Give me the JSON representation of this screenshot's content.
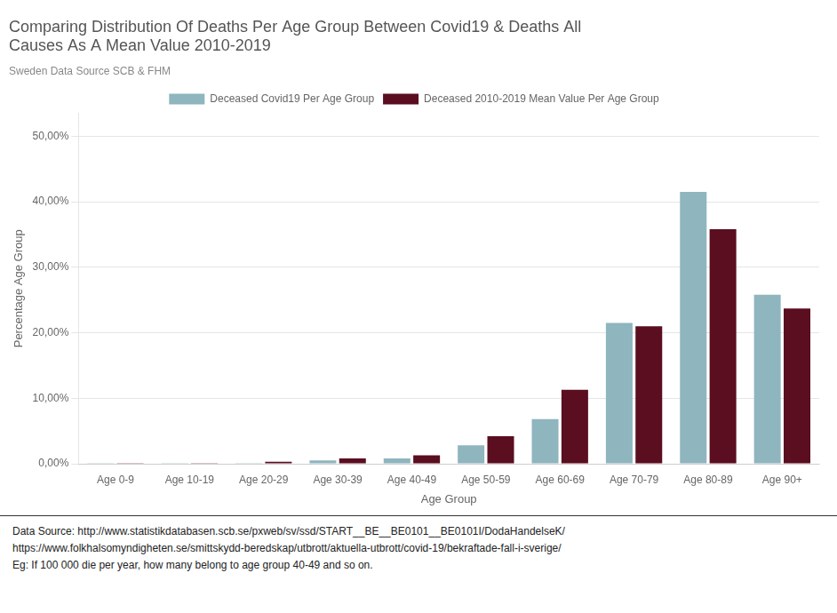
{
  "chart_data": {
    "type": "bar",
    "title": "Comparing Distribution Of Deaths Per Age Group Between Covid19 & Deaths All\nCauses As A Mean Value 2010-2019",
    "subtitle": "Sweden Data Source SCB & FHM",
    "xlabel": "Age Group",
    "ylabel": "Percentage Age Group",
    "categories": [
      "Age 0-9",
      "Age 10-19",
      "Age 20-29",
      "Age 30-39",
      "Age 40-49",
      "Age 50-59",
      "Age 60-69",
      "Age 70-79",
      "Age 80-89",
      "Age 90+"
    ],
    "series": [
      {
        "name": "Deceased Covid19 Per Age Group",
        "color": "#8fb5bf",
        "values": [
          0.0005,
          0.0003,
          0.001,
          0.005,
          0.008,
          0.028,
          0.068,
          0.215,
          0.415,
          0.258
        ]
      },
      {
        "name": "Deceased 2010-2019 Mean Value Per Age Group",
        "color": "#5a0e20",
        "values": [
          0.0003,
          0.0003,
          0.003,
          0.008,
          0.013,
          0.042,
          0.113,
          0.21,
          0.358,
          0.237
        ]
      }
    ],
    "ylim": [
      0,
      0.535
    ],
    "yticks": [
      {
        "value": 0.0,
        "label": "0,00%"
      },
      {
        "value": 0.1,
        "label": "10,00%"
      },
      {
        "value": 0.2,
        "label": "20,00%"
      },
      {
        "value": 0.3,
        "label": "30,00%"
      },
      {
        "value": 0.4,
        "label": "40,00%"
      },
      {
        "value": 0.5,
        "label": "50,00%"
      }
    ],
    "grid": true,
    "legend": "top",
    "annotations": [
      "Data Source: http://www.statistikdatabasen.scb.se/pxweb/sv/ssd/START__BE__BE0101__BE0101I/DodaHandelseK/",
      "https://www.folkhalsomyndigheten.se/smittskydd-beredskap/utbrott/aktuella-utbrott/covid-19/bekraftade-fall-i-sverige/",
      "Eg: If 100 000 die per year, how many belong to age group 40-49 and so on."
    ]
  }
}
